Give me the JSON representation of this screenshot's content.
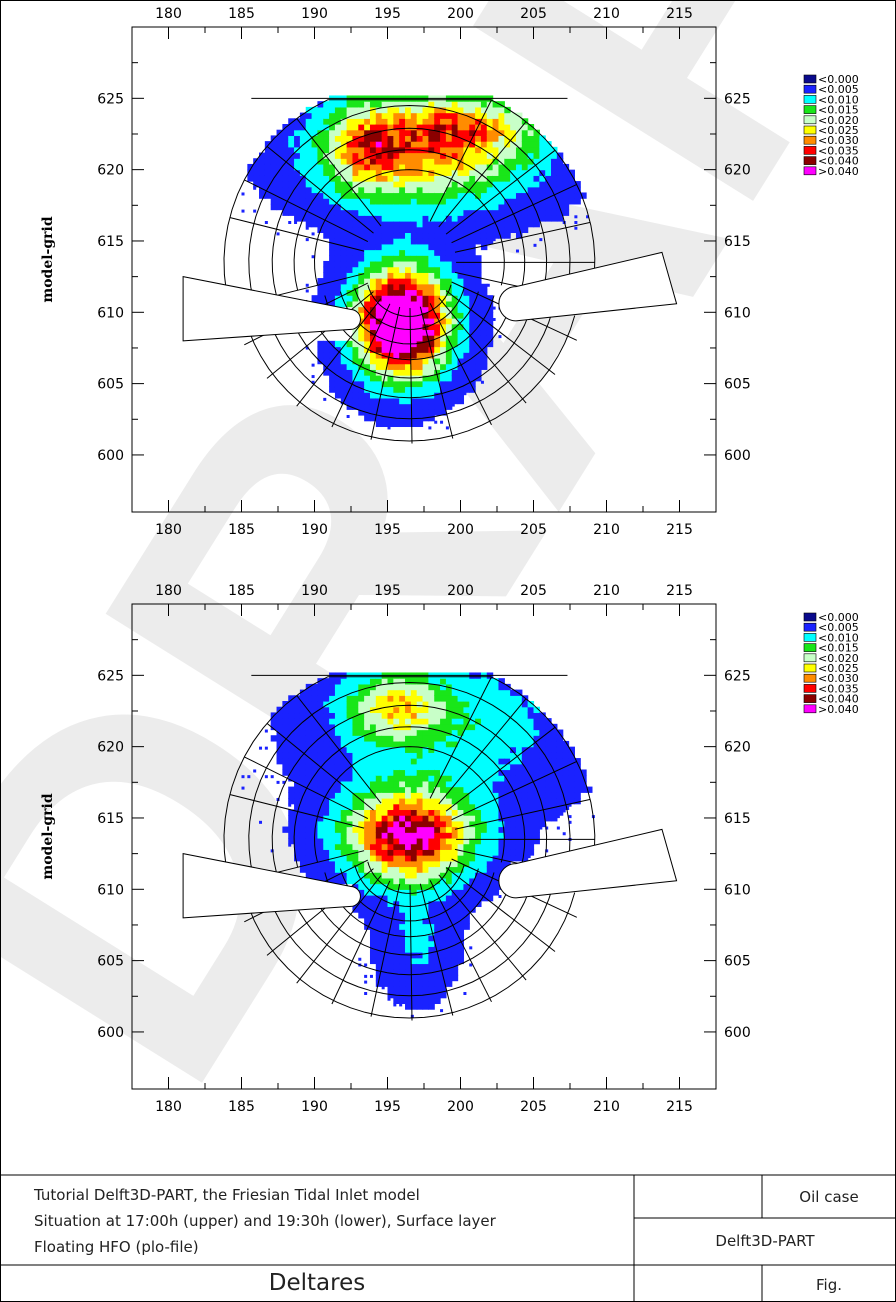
{
  "watermark": "DRAFT",
  "colors": {
    "legend": [
      "#0a0a8c",
      "#1a22ff",
      "#00ffff",
      "#19e619",
      "#c8ffc8",
      "#ffff00",
      "#ff8c00",
      "#ff0000",
      "#8b0000",
      "#ff00ff"
    ],
    "particle_dot": "#1a22ff",
    "watermark": "#ececec"
  },
  "chart_data": [
    {
      "type": "heatmap",
      "title": "",
      "xlabel": "",
      "ylabel": "model-grid",
      "xlim": [
        177.5,
        217.5
      ],
      "ylim": [
        596,
        630
      ],
      "xticks": [
        180,
        185,
        190,
        195,
        200,
        205,
        210,
        215
      ],
      "yticks": [
        600,
        605,
        610,
        615,
        620,
        625
      ],
      "legend": {
        "placement": "top-right",
        "labels": [
          "<0.000",
          "<0.005",
          "<0.010",
          "<0.015",
          "<0.020",
          "<0.025",
          "<0.030",
          "<0.035",
          "<0.040",
          ">0.040"
        ]
      },
      "blobs": [
        {
          "x": 197.5,
          "y": 621.5,
          "sx": 4.8,
          "sy": 2.6,
          "peak": 0.028
        },
        {
          "x": 193.5,
          "y": 621.5,
          "sx": 1.6,
          "sy": 2.0,
          "peak": 0.014
        },
        {
          "x": 201.0,
          "y": 623.2,
          "sx": 3.5,
          "sy": 1.3,
          "peak": 0.012
        },
        {
          "x": 196.0,
          "y": 609.3,
          "sx": 2.1,
          "sy": 2.5,
          "peak": 0.06
        }
      ]
    },
    {
      "type": "heatmap",
      "title": "",
      "xlabel": "",
      "ylabel": "model-grid",
      "xlim": [
        177.5,
        217.5
      ],
      "ylim": [
        596,
        630
      ],
      "xticks": [
        180,
        185,
        190,
        195,
        200,
        205,
        210,
        215
      ],
      "yticks": [
        600,
        605,
        610,
        615,
        620,
        625
      ],
      "legend": {
        "placement": "top-right",
        "labels": [
          "<0.000",
          "<0.005",
          "<0.010",
          "<0.015",
          "<0.020",
          "<0.025",
          "<0.030",
          "<0.035",
          "<0.040",
          ">0.040"
        ]
      },
      "blobs": [
        {
          "x": 196.5,
          "y": 613.8,
          "sx": 2.9,
          "sy": 2.1,
          "peak": 0.042
        },
        {
          "x": 195.5,
          "y": 622.8,
          "sx": 2.2,
          "sy": 1.6,
          "peak": 0.018
        },
        {
          "x": 199.0,
          "y": 621.5,
          "sx": 5.5,
          "sy": 3.5,
          "peak": 0.009
        },
        {
          "x": 197.0,
          "y": 606.5,
          "sx": 1.6,
          "sy": 2.5,
          "peak": 0.006
        }
      ]
    }
  ],
  "title_block": {
    "line1": "Tutorial Delft3D-PART, the Friesian Tidal Inlet model",
    "line2": "Situation at 17:00h (upper) and 19:30h (lower), Surface layer",
    "line3": "Floating HFO (plo-file)",
    "company": "Deltares",
    "case": "Oil case",
    "program": "Delft3D-PART",
    "fig": "Fig."
  }
}
